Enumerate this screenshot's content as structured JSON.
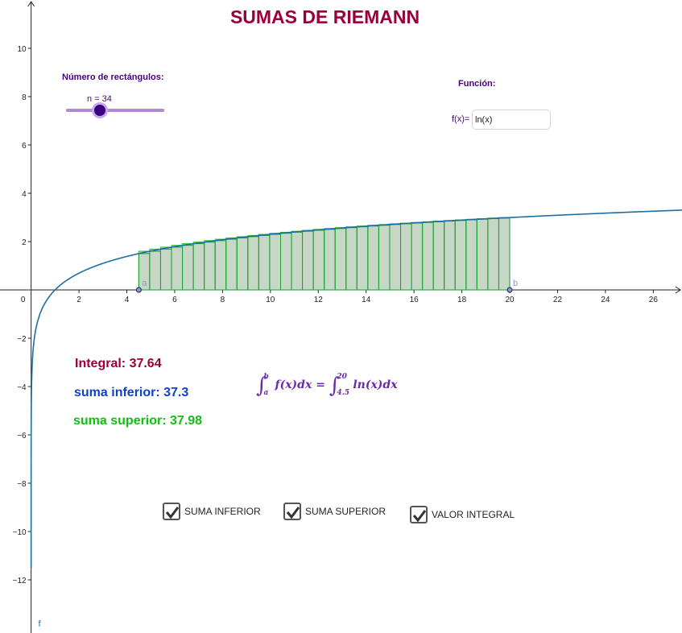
{
  "title": "SUMAS DE RIEMANN",
  "slider": {
    "label": "Número de rectángulos:",
    "value_text": "n = 34",
    "n": 34,
    "min": 1,
    "max": 100,
    "track_color": "#b088d8",
    "knob_color": "#3a0080"
  },
  "function_panel": {
    "label": "Función:",
    "prefix": "f(x)=",
    "value": "ln(x)"
  },
  "results": {
    "integral": "Integral: 37.64",
    "lower_sum": "suma inferior: 37.3",
    "upper_sum": "suma superior: 37.98"
  },
  "formula": {
    "lhs_upper": "b",
    "lhs_lower": "a",
    "lhs_integrand": "f(x)dx",
    "equals": "=",
    "rhs_upper": "20",
    "rhs_lower": "4.5",
    "rhs_integrand": "ln(x)dx"
  },
  "checkboxes": [
    {
      "label": "SUMA INFERIOR",
      "checked": true
    },
    {
      "label": "SUMA SUPERIOR",
      "checked": true
    },
    {
      "label": "VALOR INTEGRAL",
      "checked": true
    }
  ],
  "colors": {
    "title": "#99003a",
    "curve": "#1f6ea0",
    "lower_rect_stroke": "#1e9e3a",
    "upper_rect_stroke": "#23c423",
    "rect_fill": "#c6d7c6",
    "integral_text": "#99003a",
    "lower_text": "#1140c8",
    "upper_text": "#13bd13",
    "point_fill": "#8a96d8"
  },
  "chart_data": {
    "type": "line",
    "function": "ln(x)",
    "curve_label": "f",
    "interval": {
      "a": 4.5,
      "b": 20
    },
    "a_label": "a",
    "b_label": "b",
    "rectangles": 34,
    "x_ticks": [
      0,
      2,
      4,
      6,
      8,
      10,
      12,
      14,
      16,
      18,
      20,
      22,
      24,
      26
    ],
    "y_ticks": [
      -12,
      -10,
      -8,
      -6,
      -4,
      -2,
      2,
      4,
      6,
      8,
      10
    ],
    "xlim": [
      -1.3,
      27.2
    ],
    "ylim": [
      -14.2,
      12.0
    ],
    "grid": false
  }
}
